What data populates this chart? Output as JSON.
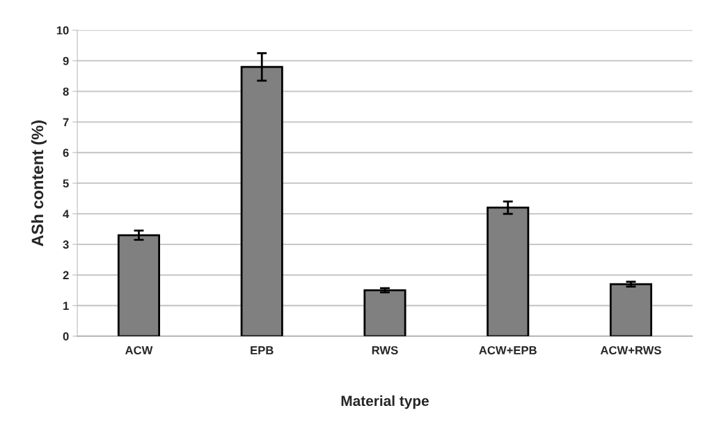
{
  "chart_data": {
    "type": "bar",
    "xlabel": "Material type",
    "ylabel": "ASh content (%)",
    "categories": [
      "ACW",
      "EPB",
      "RWS",
      "ACW+EPB",
      "ACW+RWS"
    ],
    "values": [
      3.3,
      8.8,
      1.5,
      4.2,
      1.7
    ],
    "errors": [
      0.15,
      0.45,
      0.07,
      0.2,
      0.08
    ],
    "color": "#808080",
    "ylim": [
      0,
      10
    ],
    "yticks": [
      0,
      1,
      2,
      3,
      4,
      5,
      6,
      7,
      8,
      9,
      10
    ],
    "grid": "y",
    "legend": false
  }
}
